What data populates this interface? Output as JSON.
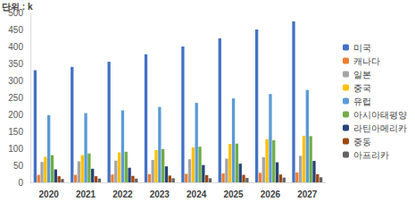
{
  "chart_data": {
    "type": "bar",
    "y_label": "단위 : k",
    "categories": [
      "2020",
      "2021",
      "2022",
      "2023",
      "2024",
      "2025",
      "2026",
      "2027"
    ],
    "series": [
      {
        "name": "미국",
        "color": "#4472c4",
        "values": [
          330,
          340,
          355,
          377,
          400,
          424,
          450,
          474
        ]
      },
      {
        "name": "캐나다",
        "color": "#ed7d31",
        "values": [
          22,
          22,
          23,
          24,
          25,
          26,
          28,
          29
        ]
      },
      {
        "name": "일본",
        "color": "#a5a5a5",
        "values": [
          60,
          62,
          64,
          66,
          68,
          70,
          74,
          78
        ]
      },
      {
        "name": "중국",
        "color": "#ffc000",
        "values": [
          75,
          80,
          88,
          95,
          103,
          113,
          127,
          137
        ]
      },
      {
        "name": "유럽",
        "color": "#5b9bd5",
        "values": [
          198,
          204,
          212,
          222,
          234,
          247,
          260,
          272
        ]
      },
      {
        "name": "아시아태평양",
        "color": "#70ad47",
        "values": [
          80,
          85,
          90,
          98,
          105,
          114,
          124,
          136
        ]
      },
      {
        "name": "라틴아메리카",
        "color": "#264478",
        "values": [
          38,
          40,
          43,
          47,
          51,
          55,
          59,
          63
        ]
      },
      {
        "name": "중동",
        "color": "#9e480e",
        "values": [
          18,
          18,
          19,
          20,
          21,
          22,
          23,
          24
        ]
      },
      {
        "name": "아프리카",
        "color": "#636363",
        "values": [
          10,
          11,
          11,
          12,
          12,
          13,
          14,
          15
        ]
      }
    ],
    "ylim": [
      0,
      500
    ],
    "yticks": [
      0,
      50,
      100,
      150,
      200,
      250,
      300,
      350,
      400,
      450,
      500
    ],
    "grid": false,
    "legend": "right"
  }
}
